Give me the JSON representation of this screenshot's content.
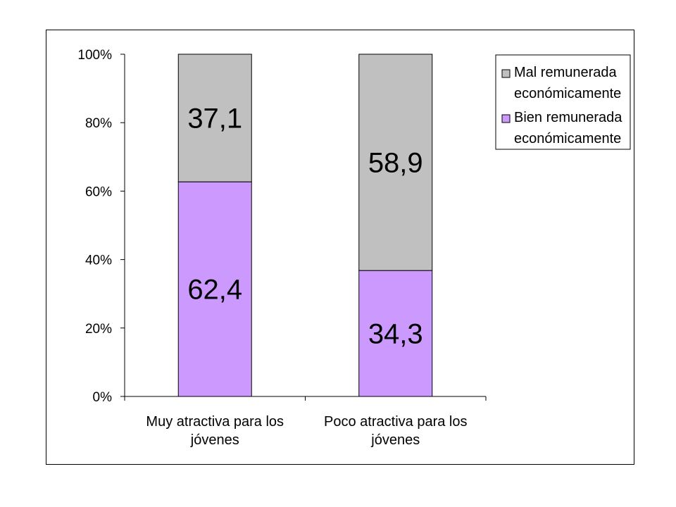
{
  "chart_data": {
    "type": "bar",
    "stacked": true,
    "percent_stacked": true,
    "categories": [
      [
        "Muy atractiva para los",
        "jóvenes"
      ],
      [
        "Poco atractiva para los",
        "jóvenes"
      ]
    ],
    "series": [
      {
        "name": [
          "Bien remunerada",
          "económicamente"
        ],
        "values": [
          62.4,
          34.3
        ],
        "labels": [
          "62,4",
          "34,3"
        ],
        "color": "#cc99ff"
      },
      {
        "name": [
          "Mal remunerada",
          "económicamente"
        ],
        "values": [
          37.1,
          58.9
        ],
        "labels": [
          "37,1",
          "58,9"
        ],
        "color": "#c0c0c0"
      }
    ],
    "y_ticks": [
      "0%",
      "20%",
      "40%",
      "60%",
      "80%",
      "100%"
    ],
    "ylim": [
      0,
      100
    ],
    "grid": false,
    "legend_position": "top-right",
    "legend_order": [
      1,
      0
    ]
  }
}
